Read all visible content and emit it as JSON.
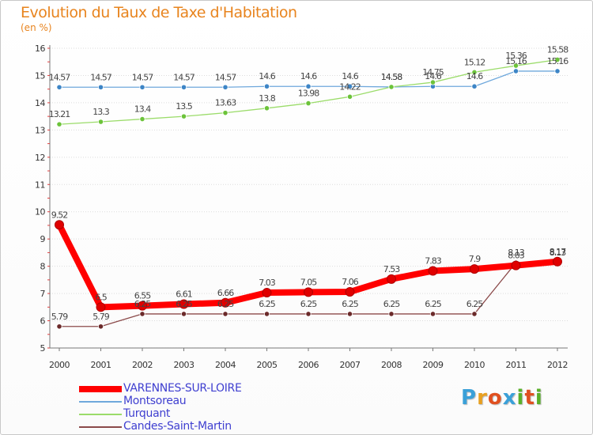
{
  "header": {
    "title": "Evolution du Taux de Taxe d'Habitation",
    "unit": "(en %)"
  },
  "logo": {
    "text": "Proxiti",
    "colors": [
      "#3aa0d8",
      "#e8a020",
      "#e05020",
      "#3aa0d8",
      "#5ab02a",
      "#e05020",
      "#5ab02a"
    ]
  },
  "chart_data": {
    "type": "line",
    "title": "Evolution du Taux de Taxe d'Habitation",
    "ylabel": "(en %)",
    "xlabel": "",
    "ylim": [
      5,
      16
    ],
    "yticks": [
      "5",
      "6",
      "7",
      "8",
      "9",
      "10",
      "11",
      "12",
      "13",
      "14",
      "15",
      "16"
    ],
    "categories": [
      "2000",
      "2001",
      "2002",
      "2003",
      "2004",
      "2005",
      "2006",
      "2007",
      "2008",
      "2009",
      "2010",
      "2011",
      "2012"
    ],
    "series": [
      {
        "name": "VARENNES-SUR-LOIRE",
        "color": "#ff0000",
        "marker": "#e00000",
        "values": [
          9.52,
          6.5,
          6.55,
          6.61,
          6.66,
          7.03,
          7.05,
          7.06,
          7.53,
          7.83,
          7.9,
          8.03,
          8.17
        ],
        "labels": [
          "9.52",
          "6.5",
          "6.55",
          "6.61",
          "6.66",
          "7.03",
          "7.05",
          "7.06",
          "7.53",
          "7.83",
          "7.9",
          "8.03",
          "8.17"
        ],
        "bold": true
      },
      {
        "name": "Montsoreau",
        "color": "#6fa8dc",
        "marker": "#3d85c6",
        "values": [
          14.57,
          14.57,
          14.57,
          14.57,
          14.57,
          14.6,
          14.6,
          14.6,
          14.58,
          14.6,
          14.6,
          15.16,
          15.16
        ],
        "labels": [
          "14.57",
          "14.57",
          "14.57",
          "14.57",
          "14.57",
          "14.6",
          "14.6",
          "14.6",
          "14.58",
          "14.6",
          "14.6",
          "15.16",
          "15.16"
        ]
      },
      {
        "name": "Turquant",
        "color": "#9bdc6a",
        "marker": "#6cc33a",
        "values": [
          13.21,
          13.3,
          13.4,
          13.5,
          13.63,
          13.8,
          13.98,
          14.22,
          14.58,
          14.75,
          15.12,
          15.36,
          15.58
        ],
        "labels": [
          "13.21",
          "13.3",
          "13.4",
          "13.5",
          "13.63",
          "13.8",
          "13.98",
          "14.22",
          "14.58",
          "14.75",
          "15.12",
          "15.36",
          "15.58"
        ]
      },
      {
        "name": "Candes-Saint-Martin",
        "color": "#8b4a4a",
        "marker": "#6b2a2a",
        "values": [
          5.79,
          5.79,
          6.25,
          6.25,
          6.25,
          6.25,
          6.25,
          6.25,
          6.25,
          6.25,
          6.25,
          8.13,
          8.13
        ],
        "labels": [
          "5.79",
          "5.79",
          "6.25",
          "6.25",
          "6.25",
          "6.25",
          "6.25",
          "6.25",
          "6.25",
          "6.25",
          "6.25",
          "8.13",
          "8.13"
        ]
      }
    ]
  }
}
